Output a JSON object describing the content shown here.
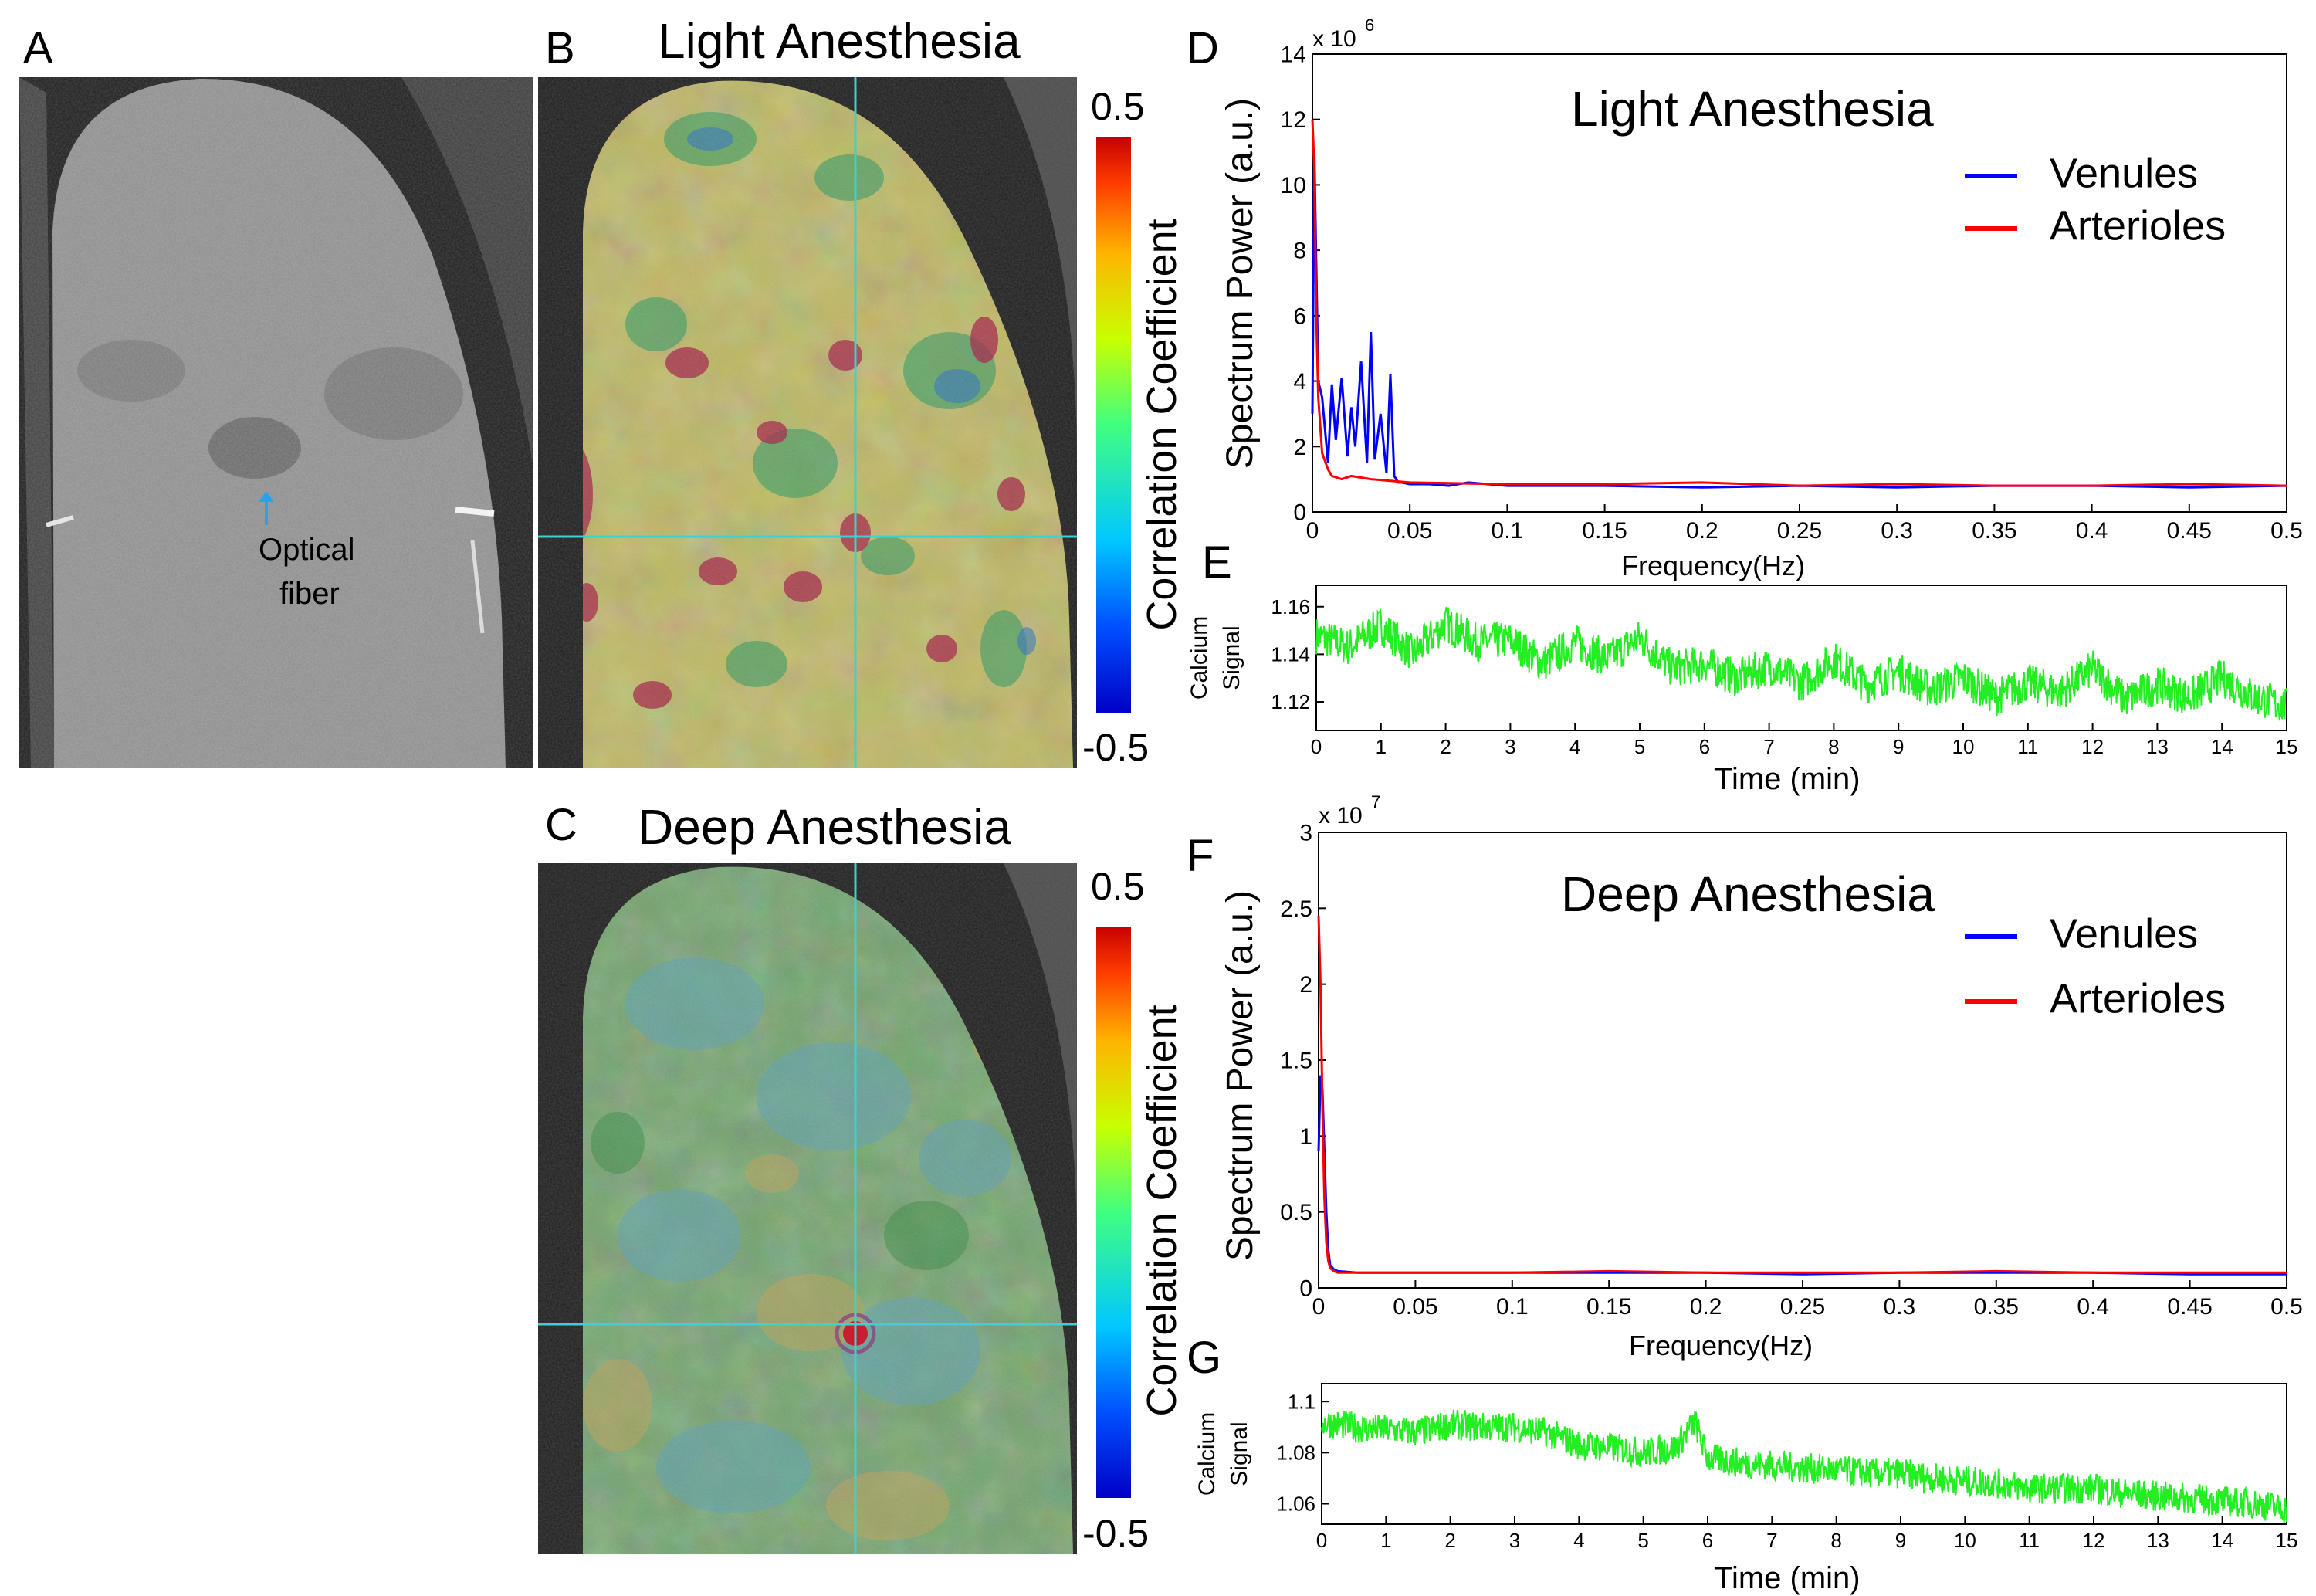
{
  "figure": {
    "panel_letters": {
      "a": "A",
      "b": "B",
      "c": "C",
      "d": "D",
      "e": "E",
      "f": "F",
      "g": "G"
    }
  },
  "panel_a": {
    "annotation": [
      "Optical",
      "fiber"
    ],
    "annotation_color": "#2aa3e6"
  },
  "panel_b": {
    "title": "Light Anesthesia",
    "colorbar_label": "Correlation Coefficient",
    "colorbar_max": "0.5",
    "colorbar_min": "-0.5"
  },
  "panel_c": {
    "title": "Deep Anesthesia",
    "colorbar_label": "Correlation Coefficient",
    "colorbar_max": "0.5",
    "colorbar_min": "-0.5"
  },
  "colors": {
    "venules": "#0000ff",
    "arterioles": "#ff0000",
    "calcium": "#22ee22",
    "crosshair": "#3fd0d0"
  },
  "chart_data": [
    {
      "id": "D",
      "type": "line",
      "title": "Light Anesthesia",
      "xlabel": "Frequency(Hz)",
      "ylabel": "Spectrum Power (a.u.)",
      "exponent": "x 10",
      "exponent_power": "6",
      "xlim": [
        0,
        0.5
      ],
      "ylim": [
        0,
        14
      ],
      "xticks": [
        0,
        0.05,
        0.1,
        0.15,
        0.2,
        0.25,
        0.3,
        0.35,
        0.4,
        0.45,
        0.5
      ],
      "xticklabels": [
        "0",
        "0.05",
        "0.1",
        "0.15",
        "0.2",
        "0.25",
        "0.3",
        "0.35",
        "0.4",
        "0.45",
        "0.5"
      ],
      "yticks": [
        0,
        2,
        4,
        6,
        8,
        10,
        12,
        14
      ],
      "yticklabels": [
        "0",
        "2",
        "4",
        "6",
        "8",
        "10",
        "12",
        "14"
      ],
      "legend": [
        "Venules",
        "Arterioles"
      ],
      "series": [
        {
          "name": "Venules",
          "x": [
            0,
            0.001,
            0.002,
            0.003,
            0.005,
            0.008,
            0.01,
            0.012,
            0.015,
            0.018,
            0.02,
            0.022,
            0.025,
            0.028,
            0.03,
            0.032,
            0.035,
            0.038,
            0.04,
            0.042,
            0.044,
            0.046,
            0.05,
            0.06,
            0.07,
            0.08,
            0.1,
            0.15,
            0.2,
            0.25,
            0.3,
            0.35,
            0.4,
            0.45,
            0.5
          ],
          "y": [
            3.0,
            11.0,
            7.5,
            4.0,
            3.5,
            1.5,
            3.9,
            2.2,
            4.1,
            1.7,
            3.2,
            2.0,
            4.6,
            1.5,
            5.5,
            1.6,
            3.0,
            1.2,
            4.2,
            1.1,
            0.9,
            0.9,
            0.85,
            0.85,
            0.8,
            0.9,
            0.8,
            0.8,
            0.75,
            0.8,
            0.75,
            0.8,
            0.8,
            0.75,
            0.8
          ]
        },
        {
          "name": "Arterioles",
          "x": [
            0,
            0.001,
            0.002,
            0.003,
            0.005,
            0.008,
            0.01,
            0.015,
            0.02,
            0.03,
            0.04,
            0.05,
            0.1,
            0.15,
            0.2,
            0.25,
            0.3,
            0.35,
            0.4,
            0.45,
            0.5
          ],
          "y": [
            12.0,
            10.5,
            6.0,
            3.5,
            1.8,
            1.3,
            1.1,
            1.0,
            1.1,
            1.0,
            0.95,
            0.9,
            0.85,
            0.85,
            0.9,
            0.8,
            0.85,
            0.8,
            0.8,
            0.85,
            0.8
          ]
        }
      ]
    },
    {
      "id": "E",
      "type": "line",
      "xlabel": "Time (min)",
      "ylabel": [
        "Calcium",
        "Signal"
      ],
      "xlim": [
        0,
        15
      ],
      "ylim": [
        1.108,
        1.169
      ],
      "xticks": [
        0,
        1,
        2,
        3,
        4,
        5,
        6,
        7,
        8,
        9,
        10,
        11,
        12,
        13,
        14,
        15
      ],
      "xticklabels": [
        "0",
        "1",
        "2",
        "3",
        "4",
        "5",
        "6",
        "7",
        "8",
        "9",
        "10",
        "11",
        "12",
        "13",
        "14",
        "15"
      ],
      "yticks": [
        1.12,
        1.14,
        1.16
      ],
      "yticklabels": [
        "1.12",
        "1.14",
        "1.16"
      ],
      "series": [
        {
          "name": "Calcium Signal",
          "x": [
            0,
            0.5,
            1,
            1.5,
            2,
            2.5,
            3,
            3.5,
            4,
            4.5,
            5,
            5.5,
            6,
            6.5,
            7,
            7.5,
            8,
            8.5,
            9,
            9.5,
            10,
            10.5,
            11,
            11.5,
            12,
            12.5,
            13,
            13.5,
            14,
            14.5,
            15
          ],
          "y": [
            1.148,
            1.143,
            1.152,
            1.14,
            1.153,
            1.145,
            1.146,
            1.136,
            1.145,
            1.138,
            1.147,
            1.134,
            1.136,
            1.13,
            1.135,
            1.128,
            1.138,
            1.127,
            1.133,
            1.125,
            1.13,
            1.122,
            1.128,
            1.124,
            1.134,
            1.121,
            1.127,
            1.122,
            1.13,
            1.122,
            1.118
          ],
          "noise": 0.008
        }
      ]
    },
    {
      "id": "F",
      "type": "line",
      "title": "Deep Anesthesia",
      "xlabel": "Frequency(Hz)",
      "ylabel": "Spectrum Power (a.u.)",
      "exponent": "x 10",
      "exponent_power": "7",
      "xlim": [
        0,
        0.5
      ],
      "ylim": [
        0,
        3
      ],
      "xticks": [
        0,
        0.05,
        0.1,
        0.15,
        0.2,
        0.25,
        0.3,
        0.35,
        0.4,
        0.45,
        0.5
      ],
      "xticklabels": [
        "0",
        "0.05",
        "0.1",
        "0.15",
        "0.2",
        "0.25",
        "0.3",
        "0.35",
        "0.4",
        "0.45",
        "0.5"
      ],
      "yticks": [
        0,
        0.5,
        1,
        1.5,
        2,
        2.5,
        3
      ],
      "yticklabels": [
        "0",
        "0.5",
        "1",
        "1.5",
        "2",
        "2.5",
        "3"
      ],
      "legend": [
        "Venules",
        "Arterioles"
      ],
      "series": [
        {
          "name": "Venules",
          "x": [
            0,
            0.001,
            0.002,
            0.003,
            0.004,
            0.005,
            0.006,
            0.008,
            0.01,
            0.02,
            0.05,
            0.1,
            0.15,
            0.2,
            0.25,
            0.3,
            0.35,
            0.4,
            0.45,
            0.5
          ],
          "y": [
            0.9,
            1.4,
            1.3,
            0.9,
            0.5,
            0.25,
            0.15,
            0.12,
            0.11,
            0.1,
            0.1,
            0.1,
            0.1,
            0.1,
            0.09,
            0.1,
            0.1,
            0.1,
            0.09,
            0.09
          ]
        },
        {
          "name": "Arterioles",
          "x": [
            0,
            0.001,
            0.002,
            0.003,
            0.004,
            0.005,
            0.006,
            0.008,
            0.01,
            0.05,
            0.1,
            0.15,
            0.2,
            0.25,
            0.3,
            0.35,
            0.4,
            0.45,
            0.5
          ],
          "y": [
            2.45,
            2.0,
            1.2,
            0.6,
            0.3,
            0.18,
            0.13,
            0.11,
            0.1,
            0.1,
            0.1,
            0.11,
            0.1,
            0.1,
            0.1,
            0.11,
            0.1,
            0.1,
            0.1
          ]
        }
      ]
    },
    {
      "id": "G",
      "type": "line",
      "xlabel": "Time (min)",
      "ylabel": [
        "Calcium",
        "Signal"
      ],
      "xlim": [
        0,
        15
      ],
      "ylim": [
        1.052,
        1.107
      ],
      "xticks": [
        0,
        1,
        2,
        3,
        4,
        5,
        6,
        7,
        8,
        9,
        10,
        11,
        12,
        13,
        14,
        15
      ],
      "xticklabels": [
        "0",
        "1",
        "2",
        "3",
        "4",
        "5",
        "6",
        "7",
        "8",
        "9",
        "10",
        "11",
        "12",
        "13",
        "14",
        "15"
      ],
      "yticks": [
        1.06,
        1.08,
        1.1
      ],
      "yticklabels": [
        "1.06",
        "1.08",
        "1.1"
      ],
      "series": [
        {
          "name": "Calcium Signal",
          "x": [
            0,
            0.5,
            1,
            1.5,
            2,
            2.5,
            3,
            3.5,
            4,
            4.5,
            5,
            5.5,
            5.8,
            6,
            6.5,
            7,
            7.5,
            8,
            8.5,
            9,
            9.5,
            10,
            10.5,
            11,
            11.5,
            12,
            12.5,
            13,
            13.5,
            14,
            14.5,
            15
          ],
          "y": [
            1.092,
            1.09,
            1.089,
            1.088,
            1.091,
            1.09,
            1.09,
            1.088,
            1.083,
            1.082,
            1.08,
            1.082,
            1.092,
            1.078,
            1.076,
            1.075,
            1.074,
            1.073,
            1.072,
            1.072,
            1.07,
            1.069,
            1.068,
            1.066,
            1.066,
            1.066,
            1.064,
            1.063,
            1.062,
            1.061,
            1.06,
            1.058
          ],
          "noise": 0.006
        }
      ]
    }
  ]
}
